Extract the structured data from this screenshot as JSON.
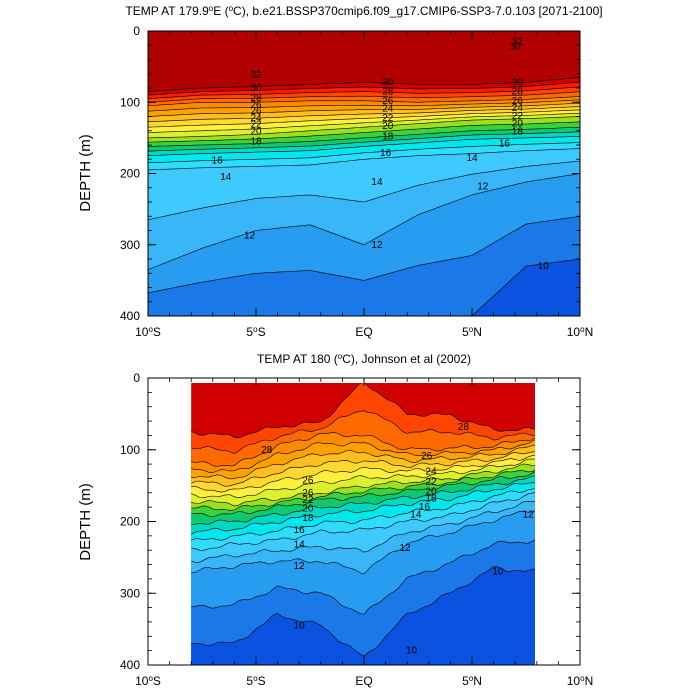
{
  "chart_data": [
    {
      "type": "contour",
      "title_main": "TEMP AT 179.9",
      "title_deg": "o",
      "title_rest": "E (",
      "title_unit_deg": "o",
      "title_tail": "C), b.e21.BSSP370cmip6.f09_g17.CMIP6-SSP3-7.0.103 [2071-2100]",
      "ylabel": "DEPTH (m)",
      "x_ticks": [
        {
          "value": -10,
          "label": "10",
          "deg": "o",
          "suffix": "S"
        },
        {
          "value": -5,
          "label": "5",
          "deg": "o",
          "suffix": "S"
        },
        {
          "value": 0,
          "label": "EQ",
          "deg": "",
          "suffix": ""
        },
        {
          "value": 5,
          "label": "5",
          "deg": "o",
          "suffix": "N"
        },
        {
          "value": 10,
          "label": "10",
          "deg": "o",
          "suffix": "N"
        }
      ],
      "y_ticks": [
        0,
        100,
        200,
        300,
        400
      ],
      "xlim": [
        -10,
        10
      ],
      "ylim": [
        0,
        400
      ],
      "contour_interval": 1,
      "isotherm_depths": {
        "x": [
          -10,
          -7.5,
          -5,
          -2.5,
          0,
          2.5,
          5,
          7.5,
          10
        ],
        "T30": [
          85,
          80,
          78,
          75,
          72,
          75,
          75,
          72,
          65
        ],
        "T26": [
          105,
          100,
          100,
          98,
          98,
          100,
          98,
          96,
          92
        ],
        "T20": [
          150,
          148,
          145,
          140,
          135,
          130,
          125,
          123,
          120
        ],
        "T18": [
          162,
          160,
          158,
          155,
          150,
          145,
          140,
          138,
          135
        ],
        "T16": [
          175,
          172,
          170,
          168,
          162,
          157,
          152,
          150,
          148
        ],
        "T14": [
          195,
          192,
          190,
          188,
          180,
          175,
          172,
          168,
          165
        ],
        "T12": [
          335,
          305,
          280,
          272,
          300,
          258,
          230,
          212,
          200
        ],
        "T10": [
          400,
          400,
          400,
          400,
          400,
          400,
          400,
          330,
          320
        ]
      },
      "labels": [
        {
          "text": "32",
          "x": -5,
          "d": 62
        },
        {
          "text": "30",
          "x": -5,
          "d": 80
        },
        {
          "text": "28",
          "x": -5,
          "d": 94
        },
        {
          "text": "26",
          "x": -5,
          "d": 104
        },
        {
          "text": "26",
          "x": -5,
          "d": 112
        },
        {
          "text": "24",
          "x": -5,
          "d": 122
        },
        {
          "text": "22",
          "x": -5,
          "d": 131
        },
        {
          "text": "20",
          "x": -5,
          "d": 141
        },
        {
          "text": "18",
          "x": -5,
          "d": 155
        },
        {
          "text": "16",
          "x": -6.8,
          "d": 182
        },
        {
          "text": "14",
          "x": -6.4,
          "d": 205
        },
        {
          "text": "12",
          "x": -5.3,
          "d": 287
        },
        {
          "text": "30",
          "x": 1.1,
          "d": 72
        },
        {
          "text": "28",
          "x": 1.1,
          "d": 85
        },
        {
          "text": "26",
          "x": 1.1,
          "d": 98
        },
        {
          "text": "24",
          "x": 1.1,
          "d": 109
        },
        {
          "text": "22",
          "x": 1.1,
          "d": 122
        },
        {
          "text": "20",
          "x": 1.1,
          "d": 133
        },
        {
          "text": "18",
          "x": 1.1,
          "d": 148
        },
        {
          "text": "16",
          "x": 1.0,
          "d": 171
        },
        {
          "text": "14",
          "x": 0.6,
          "d": 212
        },
        {
          "text": "12",
          "x": 0.6,
          "d": 300
        },
        {
          "text": "30",
          "x": 7.1,
          "d": 72
        },
        {
          "text": "28",
          "x": 7.1,
          "d": 85
        },
        {
          "text": "26",
          "x": 7.1,
          "d": 98
        },
        {
          "text": "24",
          "x": 7.1,
          "d": 108
        },
        {
          "text": "22",
          "x": 7.1,
          "d": 119
        },
        {
          "text": "20",
          "x": 7.1,
          "d": 130
        },
        {
          "text": "18",
          "x": 7.1,
          "d": 141
        },
        {
          "text": "16",
          "x": 6.5,
          "d": 158
        },
        {
          "text": "14",
          "x": 5.0,
          "d": 178
        },
        {
          "text": "12",
          "x": 5.5,
          "d": 218
        },
        {
          "text": "10",
          "x": 8.3,
          "d": 330
        },
        {
          "text": "30",
          "x": 7.0,
          "d": 22
        },
        {
          "text": "32",
          "x": 7.1,
          "d": 15
        }
      ]
    },
    {
      "type": "contour",
      "title_main": "TEMP AT 180 (",
      "title_unit_deg": "o",
      "title_tail": "C), Johnson et al (2002)",
      "ylabel": "DEPTH (m)",
      "x_ticks": [
        {
          "value": -10,
          "label": "10",
          "deg": "o",
          "suffix": "S"
        },
        {
          "value": -5,
          "label": "5",
          "deg": "o",
          "suffix": "S"
        },
        {
          "value": 0,
          "label": "EQ",
          "deg": "",
          "suffix": ""
        },
        {
          "value": 5,
          "label": "5",
          "deg": "o",
          "suffix": "N"
        },
        {
          "value": 10,
          "label": "10",
          "deg": "o",
          "suffix": "N"
        }
      ],
      "y_ticks": [
        0,
        100,
        200,
        300,
        400
      ],
      "xlim": [
        -10,
        10
      ],
      "ylim": [
        0,
        400
      ],
      "data_xrange": [
        -8,
        8
      ],
      "data_yrange": [
        5,
        400
      ],
      "contour_interval": 1,
      "isotherm_depths": {
        "x": [
          -8,
          -6,
          -4,
          -2,
          0,
          2,
          4,
          6,
          8
        ],
        "T28": [
          75,
          82,
          68,
          62,
          5,
          50,
          52,
          72,
          72
        ],
        "T26": [
          118,
          122,
          95,
          78,
          80,
          100,
          98,
          95,
          82
        ],
        "T20": [
          172,
          175,
          168,
          160,
          150,
          145,
          140,
          130,
          120
        ],
        "T18": [
          190,
          190,
          180,
          170,
          165,
          158,
          150,
          142,
          132
        ],
        "T16": [
          215,
          210,
          200,
          190,
          185,
          175,
          168,
          155,
          145
        ],
        "T14": [
          240,
          232,
          226,
          215,
          212,
          200,
          192,
          175,
          160
        ],
        "T12": [
          270,
          262,
          255,
          255,
          270,
          230,
          215,
          198,
          182
        ],
        "T10": [
          370,
          370,
          330,
          345,
          390,
          330,
          300,
          265,
          270
        ]
      },
      "labels": [
        {
          "text": "28",
          "x": -4.5,
          "d": 100
        },
        {
          "text": "28",
          "x": 4.6,
          "d": 68
        },
        {
          "text": "26",
          "x": -2.6,
          "d": 143
        },
        {
          "text": "26",
          "x": -2.6,
          "d": 160
        },
        {
          "text": "22",
          "x": -2.6,
          "d": 170
        },
        {
          "text": "20",
          "x": -2.6,
          "d": 182
        },
        {
          "text": "18",
          "x": -2.6,
          "d": 195
        },
        {
          "text": "16",
          "x": -3.0,
          "d": 212
        },
        {
          "text": "14",
          "x": -3.0,
          "d": 232
        },
        {
          "text": "12",
          "x": -3.0,
          "d": 262
        },
        {
          "text": "26",
          "x": 2.9,
          "d": 109
        },
        {
          "text": "24",
          "x": 3.1,
          "d": 130
        },
        {
          "text": "22",
          "x": 3.1,
          "d": 145
        },
        {
          "text": "20",
          "x": 3.1,
          "d": 158
        },
        {
          "text": "18",
          "x": 3.1,
          "d": 168
        },
        {
          "text": "16",
          "x": 2.8,
          "d": 180
        },
        {
          "text": "14",
          "x": 2.4,
          "d": 190
        },
        {
          "text": "12",
          "x": 1.9,
          "d": 237
        },
        {
          "text": "12",
          "x": 7.6,
          "d": 190
        },
        {
          "text": "10",
          "x": 6.2,
          "d": 270
        },
        {
          "text": "10",
          "x": -3.0,
          "d": 345
        },
        {
          "text": "10",
          "x": 2.2,
          "d": 380
        }
      ]
    }
  ],
  "colors": {
    "T32": "#b00000",
    "T30": "#d00000",
    "T28": "#ff1a00",
    "T27": "#ff4500",
    "T26": "#ff6a00",
    "T25": "#ff8a00",
    "T24": "#ffa200",
    "T23": "#ffbe20",
    "T22": "#ffd830",
    "T21": "#fff040",
    "T20": "#dcf030",
    "T19": "#9be020",
    "T18": "#3cd23c",
    "T17": "#10c870",
    "T16": "#00d8c0",
    "T15": "#00e8ee",
    "T14": "#2edcff",
    "T13": "#3ecaff",
    "T12": "#38b6f8",
    "T11": "#289cf0",
    "T10": "#1a78e8",
    "T9": "#0a52e0"
  }
}
